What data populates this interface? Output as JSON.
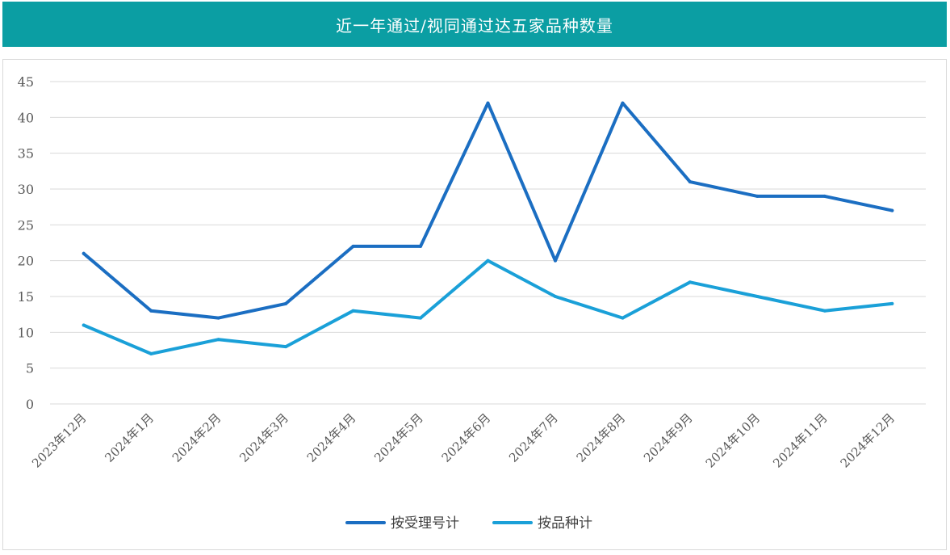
{
  "header": {
    "title": "近一年通过/视同通过达五家品种数量"
  },
  "colors": {
    "header_bg": "#0b9ea3",
    "series_1": "#1b6ec2",
    "series_2": "#1aa0d8",
    "grid": "#d9d9d9"
  },
  "chart_data": {
    "type": "line",
    "title": "近一年通过/视同通过达五家品种数量",
    "categories": [
      "2023年12月",
      "2024年1月",
      "2024年2月",
      "2024年3月",
      "2024年4月",
      "2024年5月",
      "2024年6月",
      "2024年7月",
      "2024年8月",
      "2024年9月",
      "2024年10月",
      "2024年11月",
      "2024年12月"
    ],
    "series": [
      {
        "name": "按受理号计",
        "values": [
          21,
          13,
          12,
          14,
          22,
          22,
          42,
          20,
          42,
          31,
          29,
          29,
          27
        ]
      },
      {
        "name": "按品种计",
        "values": [
          11,
          7,
          9,
          8,
          13,
          12,
          20,
          15,
          12,
          17,
          15,
          13,
          14
        ]
      }
    ],
    "ylim": [
      0,
      45
    ],
    "yticks": [
      "0",
      "5",
      "10",
      "15",
      "20",
      "25",
      "30",
      "35",
      "40",
      "45"
    ],
    "grid": true,
    "legend_position": "bottom"
  }
}
